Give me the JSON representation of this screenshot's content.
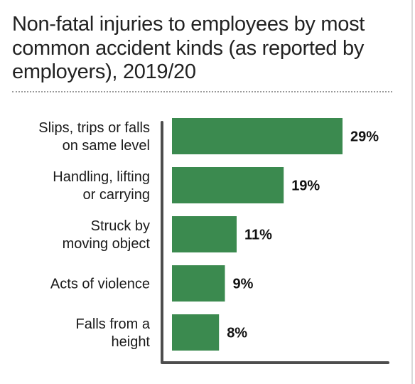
{
  "chart_data": {
    "type": "bar",
    "orientation": "horizontal",
    "title": "Non-fatal injuries to employees by most common accident kinds (as reported by employers), 2019/20",
    "categories": [
      [
        "Slips, trips or falls",
        "on same level"
      ],
      [
        "Handling, lifting",
        "or carrying"
      ],
      [
        "Struck by",
        "moving object"
      ],
      [
        "Acts of violence"
      ],
      [
        "Falls from a",
        "height"
      ]
    ],
    "values": [
      29,
      19,
      11,
      9,
      8
    ],
    "value_labels": [
      "29%",
      "19%",
      "11%",
      "9%",
      "8%"
    ],
    "unit": "%",
    "xlim": [
      0,
      29
    ],
    "bar_color": "#3b8a4f",
    "axis_color": "#4d4d4d",
    "grid": false,
    "legend": "none"
  }
}
